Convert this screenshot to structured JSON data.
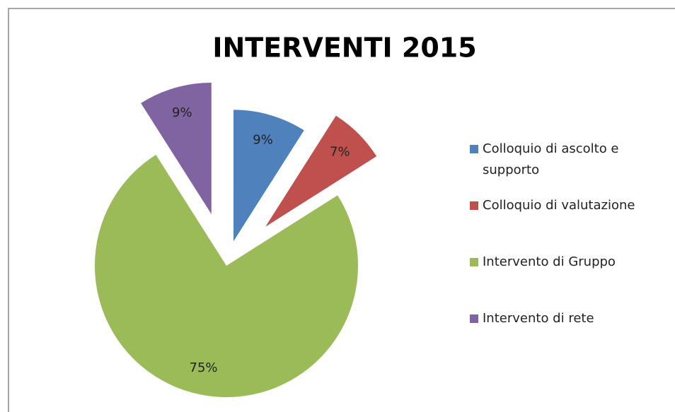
{
  "chart_data": {
    "type": "pie",
    "title": "INTERVENTI 2015",
    "categories": [
      "Colloquio di ascolto e supporto",
      "Colloquio di valutazione",
      "Intervento di Gruppo",
      "Intervento di rete"
    ],
    "values": [
      9,
      7,
      75,
      9
    ],
    "value_labels": [
      "9%",
      "7%",
      "75%",
      "9%"
    ],
    "colors": [
      "#4f81bd",
      "#c0504d",
      "#9bbb59",
      "#8064a2"
    ],
    "legend": "right"
  }
}
